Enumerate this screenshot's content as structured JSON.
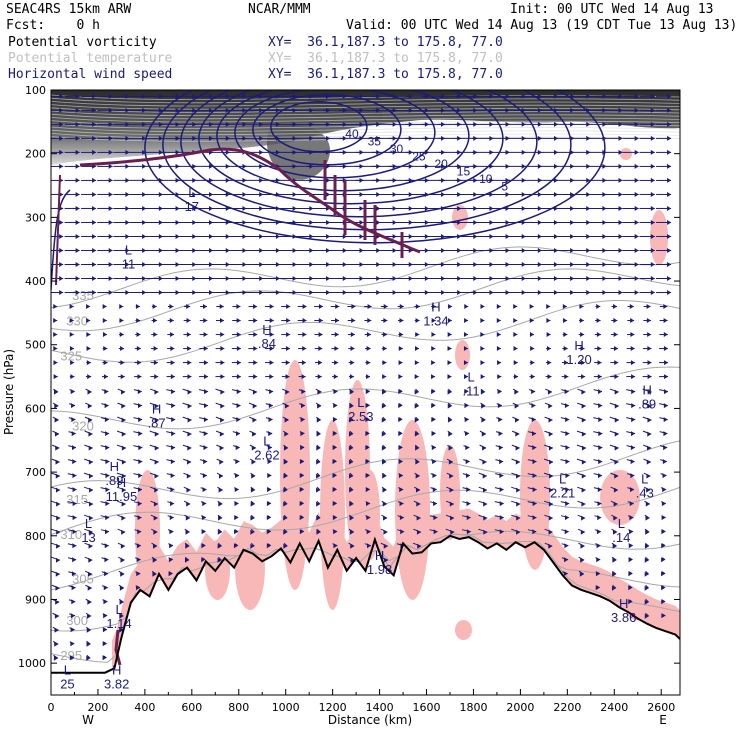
{
  "header": {
    "model": "SEAC4RS 15km ARW",
    "forecast": "Fcst:    0 h",
    "organization": "NCAR/MMM",
    "init": "Init: 00 UTC Wed 14 Aug 13",
    "valid": "Valid: 00 UTC Wed 14 Aug 13 (19 CDT Tue 13 Aug 13)",
    "fields": [
      {
        "name": "Potential vorticity",
        "xy": "XY=  36.1,187.3 to 175.8, 77.0",
        "color": "#1b1b7a"
      },
      {
        "name": "Potential temperature",
        "xy": "XY=  36.1,187.3 to 175.8, 77.0",
        "color": "#c0c0c0"
      },
      {
        "name": "Horizontal wind speed",
        "xy": "XY=  36.1,187.3 to 175.8, 77.0",
        "color": "#1b1b7a"
      }
    ]
  },
  "colors": {
    "terrain": "#000000",
    "pv_contour": "#6a1f4f",
    "wind_contour": "#1b1b7a",
    "theta_contour": "#a8a8a8",
    "humidity_shading": "#f9b8b8",
    "stratosphere_shading": "#3a3a3a"
  },
  "chart_data": {
    "type": "cross-section",
    "xlabel": "Distance (km)",
    "ylabel": "Pressure (hPa)",
    "x_ticks": [
      0,
      200,
      400,
      600,
      800,
      1000,
      1200,
      1400,
      1600,
      1800,
      2000,
      2200,
      2400,
      2600
    ],
    "y_ticks": [
      100,
      200,
      300,
      400,
      500,
      600,
      700,
      800,
      900,
      1000
    ],
    "xlim": [
      0,
      2680
    ],
    "ylim": [
      1050,
      100
    ],
    "x_end_labels": {
      "left": "W",
      "right": "E"
    },
    "terrain": {
      "x": [
        0,
        230,
        270,
        300,
        340,
        380,
        420,
        460,
        500,
        540,
        580,
        620,
        660,
        700,
        740,
        780,
        820,
        860,
        900,
        940,
        980,
        1020,
        1060,
        1100,
        1140,
        1180,
        1220,
        1260,
        1300,
        1340,
        1380,
        1420,
        1460,
        1500,
        1540,
        1580,
        1620,
        1660,
        1700,
        1740,
        1780,
        1820,
        1860,
        1900,
        1940,
        1980,
        2020,
        2060,
        2100,
        2140,
        2180,
        2220,
        2260,
        2300,
        2340,
        2380,
        2420,
        2460,
        2500,
        2540,
        2580,
        2620,
        2660,
        2680
      ],
      "p": [
        1015,
        1015,
        1008,
        960,
        905,
        885,
        895,
        860,
        885,
        860,
        850,
        870,
        840,
        855,
        835,
        850,
        822,
        828,
        840,
        832,
        820,
        842,
        812,
        840,
        808,
        850,
        822,
        855,
        835,
        855,
        806,
        848,
        862,
        812,
        828,
        826,
        812,
        810,
        800,
        805,
        802,
        810,
        820,
        812,
        822,
        810,
        818,
        810,
        822,
        842,
        862,
        878,
        885,
        890,
        895,
        902,
        912,
        920,
        930,
        938,
        945,
        950,
        955,
        962
      ]
    },
    "wind_speed_contours": [
      5,
      10,
      15,
      20,
      25,
      30,
      35,
      40
    ],
    "potential_temperature_labels": [
      295,
      300,
      305,
      310,
      315,
      320,
      325,
      330,
      335
    ],
    "extrema_labels": [
      {
        "type": "L",
        "value": "17",
        "x": 600,
        "p": 290
      },
      {
        "type": "L",
        "value": "11",
        "x": 330,
        "p": 380
      },
      {
        "type": "H",
        "value": "1.34",
        "x": 1640,
        "p": 470
      },
      {
        "type": "H",
        "value": ".84",
        "x": 920,
        "p": 505
      },
      {
        "type": "H",
        "value": "1.20",
        "x": 2250,
        "p": 530
      },
      {
        "type": "L",
        "value": ".11",
        "x": 1790,
        "p": 580
      },
      {
        "type": "H",
        "value": ".89",
        "x": 2540,
        "p": 600
      },
      {
        "type": "H",
        "value": ".87",
        "x": 450,
        "p": 630
      },
      {
        "type": "L",
        "value": "2.53",
        "x": 1320,
        "p": 620
      },
      {
        "type": "L",
        "value": "2.62",
        "x": 920,
        "p": 680
      },
      {
        "type": "H",
        "value": ".89",
        "x": 270,
        "p": 720
      },
      {
        "type": "H",
        "value": "11.95",
        "x": 300,
        "p": 745
      },
      {
        "type": "L",
        "value": "2.21",
        "x": 2180,
        "p": 740
      },
      {
        "type": "L",
        "value": ".43",
        "x": 2530,
        "p": 740
      },
      {
        "type": "L",
        "value": "13",
        "x": 160,
        "p": 810
      },
      {
        "type": "L",
        "value": ".14",
        "x": 2430,
        "p": 810
      },
      {
        "type": "H",
        "value": "1.98",
        "x": 1400,
        "p": 860
      },
      {
        "type": "L",
        "value": "1.14",
        "x": 290,
        "p": 945
      },
      {
        "type": "H",
        "value": "3.86",
        "x": 2440,
        "p": 935
      },
      {
        "type": "L",
        "value": "25",
        "x": 70,
        "p": 1040
      },
      {
        "type": "H",
        "value": "3.82",
        "x": 280,
        "p": 1040
      }
    ]
  }
}
